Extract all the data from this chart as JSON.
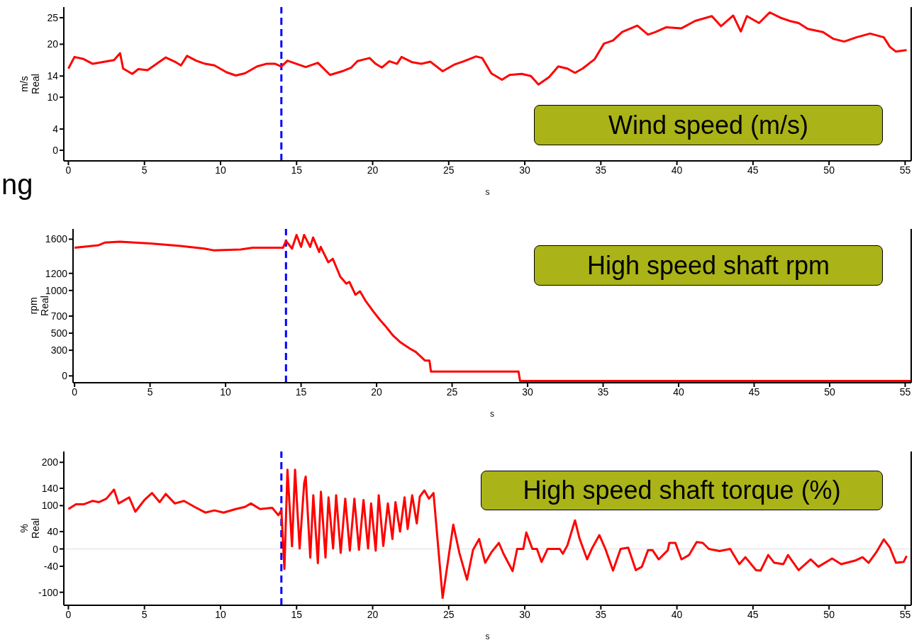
{
  "chart_data": [
    {
      "type": "line",
      "xlabel": "s",
      "ylabel": "m/s\nReal",
      "annotations": [
        "Wind speed (m/s)",
        "ng"
      ],
      "x": [
        0,
        0.4,
        1,
        1.6,
        2,
        3,
        3.4,
        3.6,
        4.2,
        4.6,
        5.2,
        6,
        6.4,
        7,
        7.4,
        7.8,
        8.4,
        9,
        9.6,
        10.4,
        11,
        11.6,
        12.4,
        13,
        13.6,
        14,
        14.4,
        15,
        15.6,
        16.4,
        17.2,
        18,
        18.6,
        19,
        19.8,
        20.2,
        20.6,
        21.1,
        21.6,
        21.9,
        22.6,
        23.2,
        23.8,
        24.6,
        25.4,
        26,
        26.8,
        27.2,
        27.8,
        28.5,
        29,
        29.8,
        30.4,
        30.9,
        31.6,
        32.2,
        32.8,
        33.3,
        33.8,
        34.6,
        35.2,
        35.8,
        36.4,
        37.4,
        38.1,
        38.6,
        39.3,
        40.3,
        41.2,
        42.3,
        42.9,
        43.7,
        44.2,
        44.6,
        45.4,
        46.1,
        46.8,
        47.4,
        48,
        48.6,
        49.6,
        50.3,
        51,
        51.8,
        52.7,
        53.6,
        54,
        54.4,
        55.1
      ],
      "series": [
        {
          "color": "#ff0000",
          "values": [
            15.4,
            17.6,
            17.2,
            16.3,
            16.5,
            17,
            18.3,
            15.4,
            14.4,
            15.3,
            15.1,
            16.7,
            17.5,
            16.7,
            16,
            17.8,
            16.9,
            16.3,
            16,
            14.7,
            14.1,
            14.5,
            15.8,
            16.3,
            16.3,
            15.8,
            16.9,
            16.3,
            15.7,
            16.5,
            14.2,
            14.9,
            15.6,
            16.8,
            17.4,
            16.3,
            15.6,
            16.8,
            16.3,
            17.6,
            16.6,
            16.3,
            16.7,
            14.9,
            16.2,
            16.8,
            17.7,
            17.4,
            14.5,
            13.3,
            14.2,
            14.4,
            14,
            12.4,
            13.8,
            15.8,
            15.4,
            14.6,
            15.4,
            17.2,
            20.1,
            20.7,
            22.3,
            23.5,
            21.8,
            22.3,
            23.2,
            23,
            24.4,
            25.3,
            23.4,
            25.4,
            22.4,
            25.3,
            24,
            26,
            25,
            24.4,
            24,
            22.9,
            22.3,
            21,
            20.5,
            21.3,
            22,
            21.3,
            19.5,
            18.6,
            18.9
          ]
        }
      ],
      "xlim": [
        -0.3,
        55.4
      ],
      "xticks": [
        0,
        5,
        10,
        15,
        20,
        25,
        30,
        35,
        40,
        45,
        50,
        55
      ],
      "ylim": [
        -2,
        27
      ],
      "yticks": [
        0,
        4,
        10,
        14,
        20,
        25
      ],
      "grid": false,
      "legend": false,
      "line_style": "solid",
      "marker": "none",
      "ref_lines": [
        {
          "axis": "x",
          "value": 14,
          "color": "#0000ff",
          "line_style": "dashed"
        }
      ]
    },
    {
      "type": "line",
      "xlabel": "s",
      "ylabel": "rpm\nReal",
      "annotations": [
        "High speed shaft rpm"
      ],
      "x": [
        0,
        1.6,
        2,
        3,
        5,
        7,
        8.6,
        9.2,
        11,
        11.8,
        13.8,
        14,
        14.4,
        14.7,
        15,
        15.2,
        15.6,
        15.8,
        16.2,
        16.3,
        16.8,
        17.1,
        17.6,
        18,
        18.2,
        18.6,
        18.9,
        19.3,
        19.8,
        20.2,
        20.6,
        21.1,
        21.6,
        22.2,
        22.6,
        23.2,
        23.5,
        23.6,
        29.4,
        29.5,
        55.4
      ],
      "series": [
        {
          "color": "#ff0000",
          "values": [
            1500,
            1530,
            1560,
            1570,
            1550,
            1520,
            1490,
            1470,
            1480,
            1500,
            1500,
            1580,
            1490,
            1650,
            1510,
            1650,
            1510,
            1620,
            1450,
            1510,
            1330,
            1370,
            1160,
            1080,
            1100,
            950,
            990,
            870,
            750,
            660,
            580,
            470,
            390,
            320,
            280,
            180,
            180,
            50,
            50,
            -60,
            -60
          ]
        }
      ],
      "xlim": [
        -0.1,
        55.4
      ],
      "xticks": [
        0,
        5,
        10,
        15,
        20,
        25,
        30,
        35,
        40,
        45,
        50,
        55
      ],
      "ylim": [
        -80,
        1720
      ],
      "yticks": [
        0,
        300,
        500,
        700,
        1000,
        1200,
        1600
      ],
      "grid": false,
      "legend": false,
      "line_style": "solid",
      "marker": "none",
      "ref_lines": [
        {
          "axis": "x",
          "value": 14,
          "color": "#0000ff",
          "line_style": "dashed"
        }
      ]
    },
    {
      "type": "line",
      "xlabel": "s",
      "ylabel": "%\nReal",
      "annotations": [
        "High speed shaft torque (%)"
      ],
      "x": [
        0,
        0.5,
        1,
        1.6,
        2,
        2.5,
        3,
        3.3,
        4,
        4.4,
        5,
        5.5,
        6,
        6.4,
        7,
        7.6,
        8.3,
        9,
        9.6,
        10.2,
        11,
        11.6,
        12,
        12.6,
        13.4,
        13.8,
        14,
        14.2,
        14.4,
        14.7,
        14.9,
        15.2,
        15.5,
        15.6,
        15.9,
        16.1,
        16.4,
        16.6,
        16.9,
        17.1,
        17.4,
        17.6,
        17.9,
        18.2,
        18.5,
        18.8,
        19.1,
        19.4,
        19.7,
        19.9,
        20.2,
        20.4,
        20.7,
        21,
        21.3,
        21.5,
        21.8,
        22.1,
        22.3,
        22.6,
        22.9,
        23.1,
        23.4,
        23.7,
        24,
        24.6,
        25.3,
        25.7,
        26.2,
        26.6,
        27,
        27.4,
        27.8,
        28.3,
        28.6,
        29.2,
        29.5,
        29.9,
        30.1,
        30.5,
        30.8,
        31.1,
        31.5,
        32.3,
        32.5,
        32.8,
        33.3,
        33.6,
        34.1,
        34.4,
        34.9,
        35.3,
        35.8,
        36.3,
        36.8,
        37.3,
        37.7,
        38.1,
        38.4,
        38.8,
        39.4,
        39.5,
        39.9,
        40.3,
        40.8,
        41.3,
        41.7,
        42.1,
        42.8,
        43.5,
        44.1,
        44.5,
        45.2,
        45.5,
        46,
        46.4,
        47,
        47.3,
        48,
        48.8,
        49.3,
        50.2,
        50.8,
        51.7,
        52.2,
        52.6,
        53.1,
        53.6,
        54,
        54.4,
        54.9,
        55.1
      ],
      "series": [
        {
          "color": "#ff0000",
          "values": [
            92,
            103,
            103,
            111,
            108,
            116,
            137,
            105,
            119,
            86,
            113,
            129,
            108,
            127,
            105,
            111,
            97,
            84,
            89,
            84,
            92,
            97,
            105,
            92,
            95,
            78,
            89,
            -46,
            183,
            6,
            183,
            1,
            152,
            167,
            -20,
            124,
            -33,
            132,
            -20,
            119,
            1,
            124,
            -9,
            116,
            -4,
            116,
            -2,
            113,
            1,
            105,
            -4,
            124,
            7,
            105,
            23,
            108,
            40,
            119,
            46,
            124,
            59,
            121,
            135,
            116,
            129,
            -113,
            56,
            -9,
            -71,
            -2,
            23,
            -32,
            -8,
            14,
            -11,
            -51,
            0,
            0,
            38,
            0,
            0,
            -30,
            0,
            0,
            -11,
            8,
            66,
            24,
            -24,
            0,
            32,
            0,
            -50,
            0,
            3,
            -49,
            -41,
            -3,
            -3,
            -24,
            -3,
            14,
            14,
            -24,
            -14,
            16,
            14,
            0,
            -5,
            0,
            -35,
            -19,
            -49,
            -50,
            -14,
            -32,
            -35,
            -14,
            -49,
            -24,
            -41,
            -22,
            -35,
            -27,
            -19,
            -32,
            -8,
            22,
            3,
            -32,
            -30,
            -16
          ]
        }
      ],
      "xlim": [
        -0.3,
        55.4
      ],
      "xticks": [
        0,
        5,
        10,
        15,
        20,
        25,
        30,
        35,
        40,
        45,
        50,
        55
      ],
      "ylim": [
        -130,
        225
      ],
      "yticks": [
        -100,
        -40,
        0,
        40,
        100,
        140,
        200
      ],
      "grid": false,
      "legend": false,
      "line_style": "solid",
      "marker": "none",
      "ref_lines": [
        {
          "axis": "x",
          "value": 14,
          "color": "#0000ff",
          "line_style": "dashed"
        },
        {
          "axis": "y",
          "value": 0,
          "color": "#dddddd",
          "line_style": "solid"
        }
      ]
    }
  ]
}
